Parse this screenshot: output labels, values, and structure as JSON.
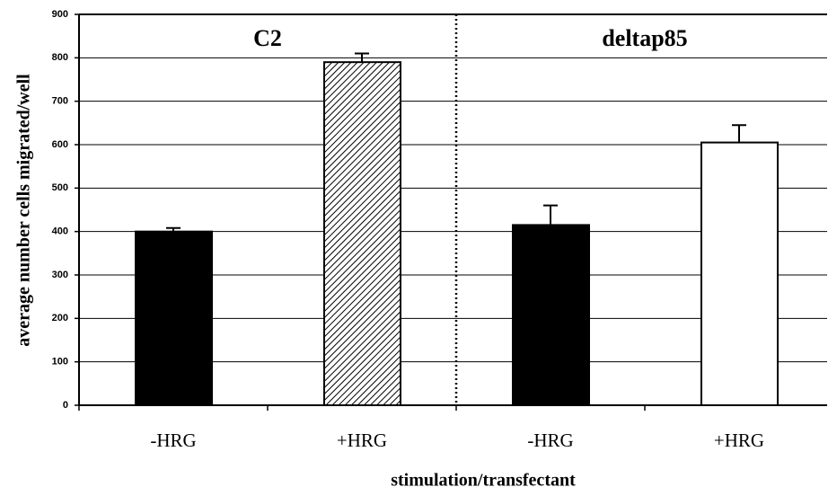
{
  "chart_data": {
    "type": "bar",
    "xlabel": "stimulation/transfectant",
    "ylabel": "average number cells migrated/well",
    "group_labels": [
      "C2",
      "deltap85"
    ],
    "categories": [
      "-HRG",
      "+HRG",
      "-HRG",
      "+HRG"
    ],
    "values": [
      400,
      790,
      415,
      605
    ],
    "errors": [
      8,
      20,
      45,
      40
    ],
    "fills": [
      "#000000",
      "hatch",
      "#000000",
      "#ffffff"
    ],
    "ylim": [
      0,
      900
    ],
    "yticks": [
      0,
      100,
      200,
      300,
      400,
      500,
      600,
      700,
      800,
      900
    ],
    "grid": true
  }
}
